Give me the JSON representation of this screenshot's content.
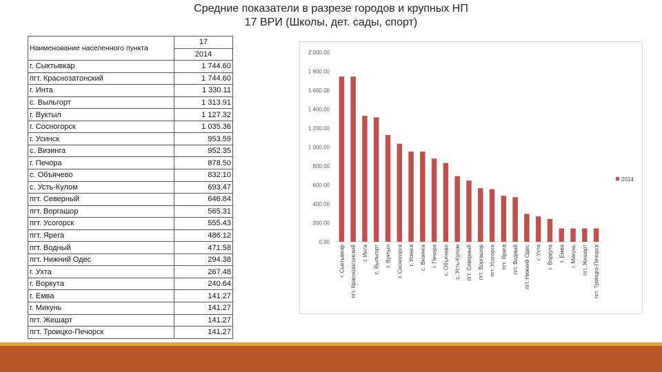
{
  "title": {
    "line1": "Средние показатели в разрезе городов и крупных НП",
    "line2": "17 ВРИ (Школы, дет. сады, спорт)"
  },
  "table": {
    "col_name_header": "Наименование населенного пункта",
    "col_value_header_top": "17",
    "col_value_header_bottom": "2014",
    "rows": [
      {
        "name": "г. Сыктывкар",
        "value": "1 744.60"
      },
      {
        "name": "пгт. Краснозатонский",
        "value": "1 744.60"
      },
      {
        "name": "г. Инта",
        "value": "1 330.11"
      },
      {
        "name": "с. Выльгорт",
        "value": "1 313.91"
      },
      {
        "name": "г. Вуктыл",
        "value": "1 127.32"
      },
      {
        "name": "г. Сосногорск",
        "value": "1 035.36"
      },
      {
        "name": "г. Усинск",
        "value": "953.59"
      },
      {
        "name": "с. Визинга",
        "value": "952.35"
      },
      {
        "name": "г. Печора",
        "value": "878.50"
      },
      {
        "name": "с. Объячево",
        "value": "832.10"
      },
      {
        "name": "с. Усть-Кулом",
        "value": "693.47"
      },
      {
        "name": "пгт. Северный",
        "value": "646.84"
      },
      {
        "name": "пгт. Воргашор",
        "value": "565.31"
      },
      {
        "name": "пгт. Усогорск",
        "value": "555.43"
      },
      {
        "name": "пгт. Ярега",
        "value": "486.12"
      },
      {
        "name": "пгт. Водный",
        "value": "471.58"
      },
      {
        "name": "пгт. Нижний Одес",
        "value": "294.38"
      },
      {
        "name": "г. Ухта",
        "value": "267.48"
      },
      {
        "name": "г. Воркута",
        "value": "240.64"
      },
      {
        "name": "г. Емва",
        "value": "141.27"
      },
      {
        "name": "г. Микунь",
        "value": "141.27"
      },
      {
        "name": "пгт. Жешарт",
        "value": "141.27"
      },
      {
        "name": "пгт. Троицко-Печорск",
        "value": "141.27"
      }
    ]
  },
  "chart_data": {
    "type": "bar",
    "categories": [
      "г. Сыктывкар",
      "пгт. Краснозатонский",
      "г. Инта",
      "с. Выльгорт",
      "г. Вуктыл",
      "г. Сосногорск",
      "г. Усинск",
      "с. Визинга",
      "г. Печора",
      "с. Объячево",
      "с. Усть-Кулом",
      "пгт. Северный",
      "пгт. Воргашор",
      "пгт. Усогорск",
      "пгт. Ярега",
      "пгт. Водный",
      "пгт. Нижний Одес",
      "г. Ухта",
      "г. Воркута",
      "г. Емва",
      "г. Микунь",
      "пгт. Жешарт",
      "пгт. Троицко-Печорск"
    ],
    "series": [
      {
        "name": "2014",
        "color": "#c0504d",
        "values": [
          1744.6,
          1744.6,
          1330.11,
          1313.91,
          1127.32,
          1035.36,
          953.59,
          952.35,
          878.5,
          832.1,
          693.47,
          646.84,
          565.31,
          555.43,
          486.12,
          471.58,
          294.38,
          267.48,
          240.64,
          141.27,
          141.27,
          141.27,
          141.27
        ]
      }
    ],
    "y_ticks": [
      "2 000.00",
      "1 800.00",
      "1 600.00",
      "1 400.00",
      "1 200.00",
      "1 000.00",
      "800.00",
      "600.00",
      "400.00",
      "200.00",
      "0.00"
    ],
    "ylim": [
      0,
      2000
    ],
    "grid": false,
    "legend": "right"
  },
  "colors": {
    "bar": "#c0504d",
    "bottom_bar": "#c0572a",
    "bottom_line": "#e8a33b"
  }
}
